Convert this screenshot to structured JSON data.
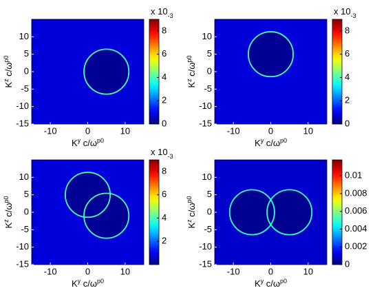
{
  "chart_data": [
    {
      "type": "heatmap",
      "colormap": "jet",
      "background_value": 0.0008,
      "inside_value": 0.0002,
      "rings": [
        {
          "cx": 5,
          "cy": 0,
          "r": 6,
          "value": 0.004
        }
      ],
      "xlim": [
        -15,
        15
      ],
      "ylim": [
        -15,
        15
      ],
      "xticks": [
        -10,
        0,
        10
      ],
      "yticks": [
        -15,
        -10,
        -5,
        0,
        5,
        10
      ],
      "x_label": [
        {
          "text": "K"
        },
        {
          "text": "y",
          "sub": true
        },
        {
          "text": " c/ω"
        },
        {
          "text": "p0",
          "sub": true
        }
      ],
      "y_label": [
        {
          "text": "K"
        },
        {
          "text": "z",
          "sub": true
        },
        {
          "text": " c/ω"
        },
        {
          "text": "p0",
          "sub": true
        }
      ],
      "clim": [
        0,
        0.009
      ],
      "cticks": [
        {
          "value": 0,
          "label": "0"
        },
        {
          "value": 0.002,
          "label": "2"
        },
        {
          "value": 0.004,
          "label": "4"
        },
        {
          "value": 0.006,
          "label": "6"
        },
        {
          "value": 0.008,
          "label": "8"
        }
      ],
      "cbar_multiplier": [
        {
          "text": "x 10"
        },
        {
          "text": "-3",
          "sup": true
        }
      ]
    },
    {
      "type": "heatmap",
      "colormap": "jet",
      "background_value": 0.0008,
      "inside_value": 0.0002,
      "rings": [
        {
          "cx": 0,
          "cy": 5,
          "r": 6,
          "value": 0.004
        }
      ],
      "xlim": [
        -15,
        15
      ],
      "ylim": [
        -15,
        15
      ],
      "xticks": [
        -10,
        0,
        10
      ],
      "yticks": [
        -15,
        -10,
        -5,
        0,
        5,
        10
      ],
      "x_label": [
        {
          "text": "K"
        },
        {
          "text": "y",
          "sub": true
        },
        {
          "text": " c/ω"
        },
        {
          "text": "p0",
          "sub": true
        }
      ],
      "y_label": [
        {
          "text": "K"
        },
        {
          "text": "z",
          "sub": true
        },
        {
          "text": " c/ω"
        },
        {
          "text": "p0",
          "sub": true
        }
      ],
      "clim": [
        0,
        0.009
      ],
      "cticks": [
        {
          "value": 0,
          "label": "0"
        },
        {
          "value": 0.002,
          "label": "2"
        },
        {
          "value": 0.004,
          "label": "4"
        },
        {
          "value": 0.006,
          "label": "6"
        },
        {
          "value": 0.008,
          "label": "8"
        }
      ],
      "cbar_multiplier": [
        {
          "text": "x 10"
        },
        {
          "text": "-3",
          "sup": true
        }
      ]
    },
    {
      "type": "heatmap",
      "colormap": "jet",
      "background_value": 0.0008,
      "inside_value": 0.0002,
      "rings": [
        {
          "cx": 0,
          "cy": 5,
          "r": 6,
          "value": 0.004
        },
        {
          "cx": 5,
          "cy": -1,
          "r": 6,
          "value": 0.004
        }
      ],
      "xlim": [
        -15,
        15
      ],
      "ylim": [
        -15,
        15
      ],
      "xticks": [
        -10,
        0,
        10
      ],
      "yticks": [
        -15,
        -10,
        -5,
        0,
        5,
        10
      ],
      "x_label": [
        {
          "text": "K"
        },
        {
          "text": "y",
          "sub": true
        },
        {
          "text": " c/ω"
        },
        {
          "text": "p0",
          "sub": true
        }
      ],
      "y_label": [
        {
          "text": "K"
        },
        {
          "text": "z",
          "sub": true
        },
        {
          "text": " c/ω"
        },
        {
          "text": "p0",
          "sub": true
        }
      ],
      "clim": [
        0,
        0.009
      ],
      "cticks": [
        {
          "value": 0.002,
          "label": "2"
        },
        {
          "value": 0.004,
          "label": "4"
        },
        {
          "value": 0.006,
          "label": "6"
        },
        {
          "value": 0.008,
          "label": "8"
        }
      ],
      "cbar_multiplier": [
        {
          "text": "x 10"
        },
        {
          "text": "-3",
          "sup": true
        }
      ]
    },
    {
      "type": "heatmap",
      "colormap": "jet",
      "background_value": 0.0009,
      "inside_value": 0.0002,
      "rings": [
        {
          "cx": -5,
          "cy": 0,
          "r": 6,
          "value": 0.005
        },
        {
          "cx": 5,
          "cy": 0,
          "r": 6,
          "value": 0.005
        }
      ],
      "xlim": [
        -15,
        15
      ],
      "ylim": [
        -15,
        15
      ],
      "xticks": [
        -10,
        0,
        10
      ],
      "yticks": [
        -15,
        -10,
        -5,
        0,
        5,
        10
      ],
      "x_label": [
        {
          "text": "K"
        },
        {
          "text": "y",
          "sub": true
        },
        {
          "text": " c/ω"
        },
        {
          "text": "p0",
          "sub": true
        }
      ],
      "y_label": [
        {
          "text": "K"
        },
        {
          "text": "z",
          "sub": true
        },
        {
          "text": " c/ω"
        },
        {
          "text": "p0",
          "sub": true
        }
      ],
      "clim": [
        0,
        0.0118
      ],
      "cticks": [
        0,
        0.002,
        0.004,
        0.006,
        0.008,
        0.01
      ]
    }
  ]
}
